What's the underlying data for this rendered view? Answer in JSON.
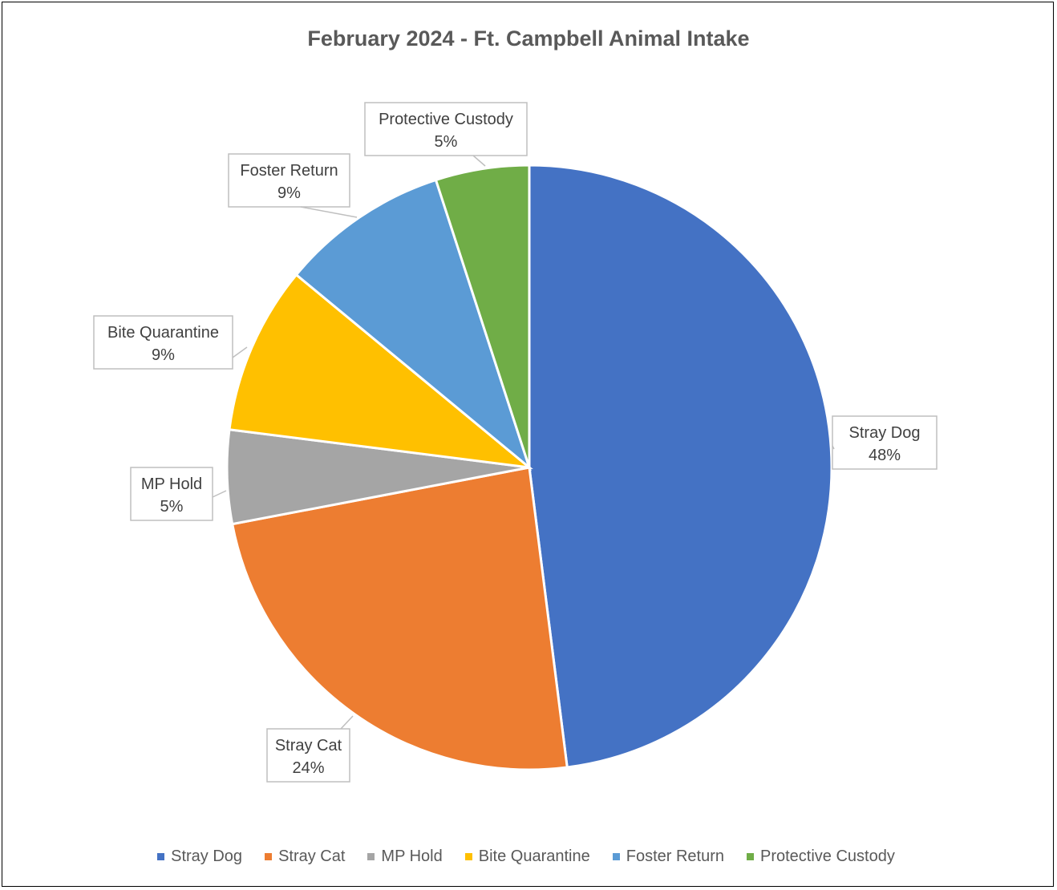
{
  "chart_data": {
    "type": "pie",
    "title": "February 2024 - Ft. Campbell Animal Intake",
    "slices": [
      {
        "label": "Stray Dog",
        "value": 48,
        "display": "48%",
        "color": "#4472C4"
      },
      {
        "label": "Stray Cat",
        "value": 24,
        "display": "24%",
        "color": "#ED7D31"
      },
      {
        "label": "MP Hold",
        "value": 5,
        "display": "5%",
        "color": "#A5A5A5"
      },
      {
        "label": "Bite Quarantine",
        "value": 9,
        "display": "9%",
        "color": "#FFC000"
      },
      {
        "label": "Foster Return",
        "value": 9,
        "display": "9%",
        "color": "#5B9BD5"
      },
      {
        "label": "Protective Custody",
        "value": 5,
        "display": "5%",
        "color": "#70AD47"
      }
    ],
    "legend_position": "bottom"
  }
}
